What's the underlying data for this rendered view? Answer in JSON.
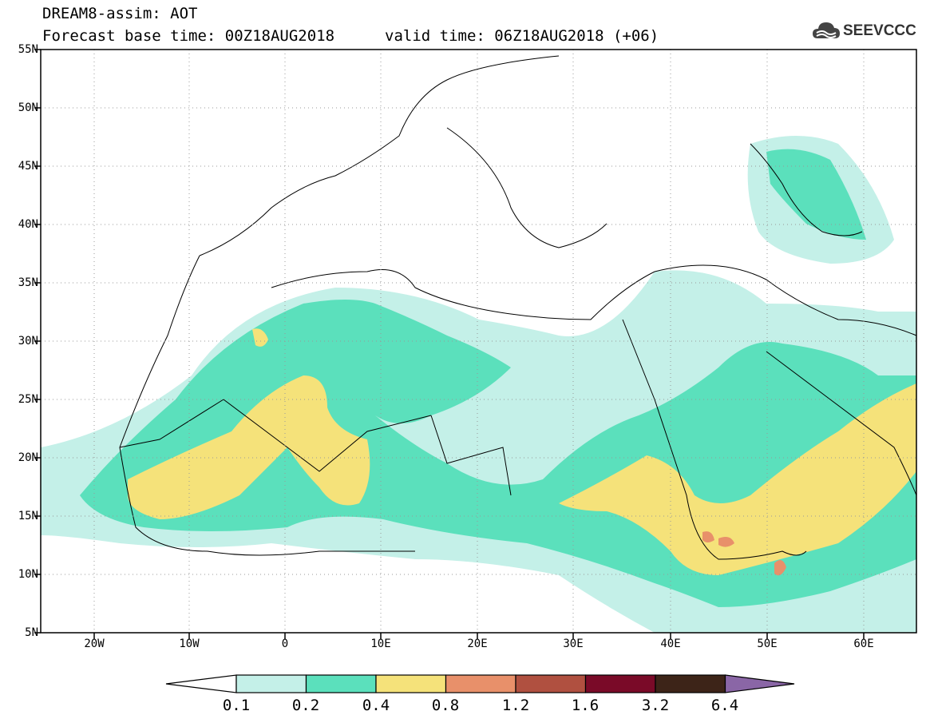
{
  "header": {
    "title_line1": "DREAM8-assim: AOT",
    "title_line2": "Forecast base time: 00Z18AUG2018",
    "valid_time": "valid time: 06Z18AUG2018 (+06)",
    "logo_text": "SEEVCCC"
  },
  "map": {
    "lat_labels": [
      "55N",
      "50N",
      "45N",
      "40N",
      "35N",
      "30N",
      "25N",
      "20N",
      "15N",
      "10N",
      "5N"
    ],
    "lon_labels": [
      "20W",
      "10W",
      "0",
      "10E",
      "20E",
      "30E",
      "40E",
      "50E",
      "60E"
    ],
    "lat_range": [
      5,
      55
    ],
    "lon_range": [
      -25,
      65
    ]
  },
  "colorbar": {
    "levels": [
      "0.1",
      "0.2",
      "0.4",
      "0.8",
      "1.2",
      "1.6",
      "3.2",
      "6.4"
    ],
    "colors": [
      "#c4f0e8",
      "#5be0bc",
      "#f5e27a",
      "#e8906a",
      "#b05040",
      "#7a0a28",
      "#3d2418",
      "#8a66a6"
    ]
  }
}
